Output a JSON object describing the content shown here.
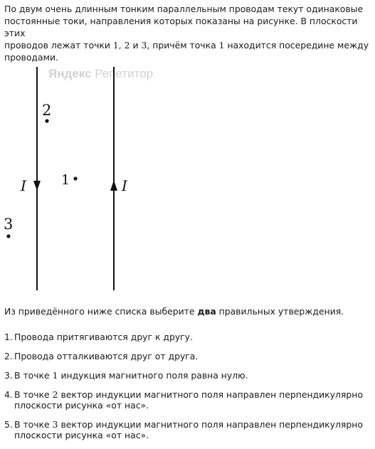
{
  "intro": {
    "line1": "По двум очень длинным тонким параллельным проводам текут одинаковые",
    "line2": "постоянные токи, направления которых показаны на рисунке. В плоскости этих",
    "line3_a": "проводов лежат точки ",
    "line3_pts": "1, 2",
    "line3_b": " и ",
    "line3_c": "3",
    "line3_d": ", причём точка ",
    "line3_e": "1",
    "line3_f": "  находится посередине между",
    "line4": "проводами."
  },
  "figure": {
    "watermark_bold": "Яндекс",
    "watermark_thin": " Репетитор",
    "current_label_left": "I",
    "current_label_right": "I",
    "point_1": "1",
    "point_2": "2",
    "point_3": "3"
  },
  "question": {
    "before": "Из приведённого ниже списка выберите ",
    "bold": "два",
    "after": " правильных утверждения."
  },
  "options": [
    {
      "num": "1.",
      "text": "Провода притягиваются друг к другу."
    },
    {
      "num": "2.",
      "text": "Провода отталкиваются друг от друга."
    },
    {
      "num": "3.",
      "text_a": "В точке ",
      "pt": "1",
      "text_b": " индукция магнитного поля равна нулю."
    },
    {
      "num": "4.",
      "text_a": "В точке ",
      "pt": "2",
      "text_b": " вектор индукции магнитного поля направлен перпендикулярно плоскости рисунка «от нас»."
    },
    {
      "num": "5.",
      "text_a": "В точке ",
      "pt": "3",
      "text_b": " вектор индукции магнитного поля направлен перпендикулярно плоскости рисунка «от нас»."
    }
  ]
}
